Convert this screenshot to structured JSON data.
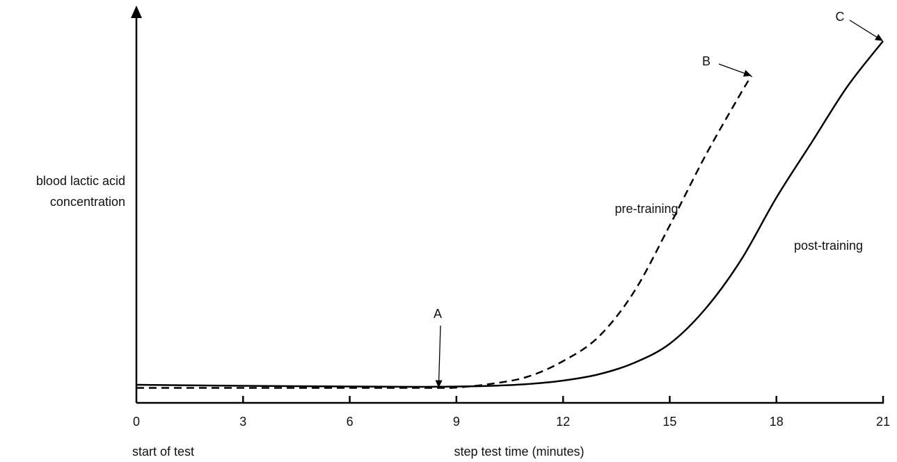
{
  "chart_data": {
    "type": "line",
    "xlabel": "step test time (minutes)",
    "ylabel": [
      "blood lactic acid",
      "concentration"
    ],
    "x_start_label": "start of test",
    "xlim": [
      0,
      21
    ],
    "ylim": [
      0,
      100
    ],
    "x_ticks": [
      "0",
      "3",
      "6",
      "9",
      "12",
      "15",
      "18",
      "21"
    ],
    "series": [
      {
        "name": "pre-training",
        "style": "dashed",
        "points": [
          [
            0,
            0.3
          ],
          [
            3,
            0.3
          ],
          [
            6,
            0.3
          ],
          [
            8.5,
            0.3
          ],
          [
            9,
            0.4
          ],
          [
            10,
            1.5
          ],
          [
            11,
            3.5
          ],
          [
            12,
            8
          ],
          [
            13,
            15
          ],
          [
            14,
            28
          ],
          [
            15,
            47
          ],
          [
            16,
            67
          ],
          [
            17,
            85
          ],
          [
            17.3,
            90
          ]
        ]
      },
      {
        "name": "post-training",
        "style": "solid",
        "points": [
          [
            0,
            1.2
          ],
          [
            3,
            0.9
          ],
          [
            6,
            0.7
          ],
          [
            8,
            0.6
          ],
          [
            9,
            0.7
          ],
          [
            10,
            0.9
          ],
          [
            11,
            1.4
          ],
          [
            12,
            2.4
          ],
          [
            13,
            4.2
          ],
          [
            14,
            7.5
          ],
          [
            15,
            13
          ],
          [
            16,
            23
          ],
          [
            17,
            37
          ],
          [
            18,
            55
          ],
          [
            19,
            71
          ],
          [
            20,
            87
          ],
          [
            21,
            100
          ]
        ]
      }
    ],
    "annotations": [
      {
        "label": "A",
        "x": 8.5,
        "y": 0.3
      },
      {
        "label": "B",
        "x": 17.3,
        "y": 90
      },
      {
        "label": "C",
        "x": 21,
        "y": 100
      }
    ]
  }
}
